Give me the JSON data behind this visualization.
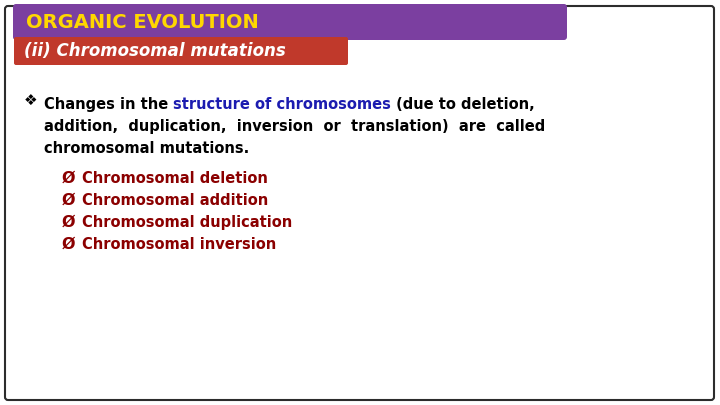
{
  "title": "ORGANIC EVOLUTION",
  "title_bg_color": "#7B3FA0",
  "title_text_color": "#FFD700",
  "subtitle": "(ii) Chromosomal mutations",
  "subtitle_bg_left_color": "#C0392B",
  "subtitle_bg_right_color": "#8B1A1A",
  "subtitle_text_color": "#FFFFFF",
  "body_bg_color": "#FFFFFF",
  "border_color": "#2C2C2C",
  "main_text_color": "#000000",
  "highlight_color": "#1C1CB0",
  "bullet_symbol": "❖",
  "bullet_color": "#000000",
  "body_line1_a": "Changes in the ",
  "body_line1_b": "structure of chromosomes",
  "body_line1_c": " (due to deletion,",
  "body_line2": "addition,  duplication,  inversion  or  translation)  are  called",
  "body_line3": "chromosomal mutations.",
  "sub_bullets": [
    "Chromosomal deletion",
    "Chromosomal addition",
    "Chromosomal duplication",
    "Chromosomal inversion"
  ],
  "sub_bullet_color": "#8B0000",
  "arrow_symbol": "Ø",
  "font_size_title": 14,
  "font_size_subtitle": 12,
  "font_size_body": 10.5,
  "font_size_sub": 10.5,
  "font_size_bullet": 11
}
